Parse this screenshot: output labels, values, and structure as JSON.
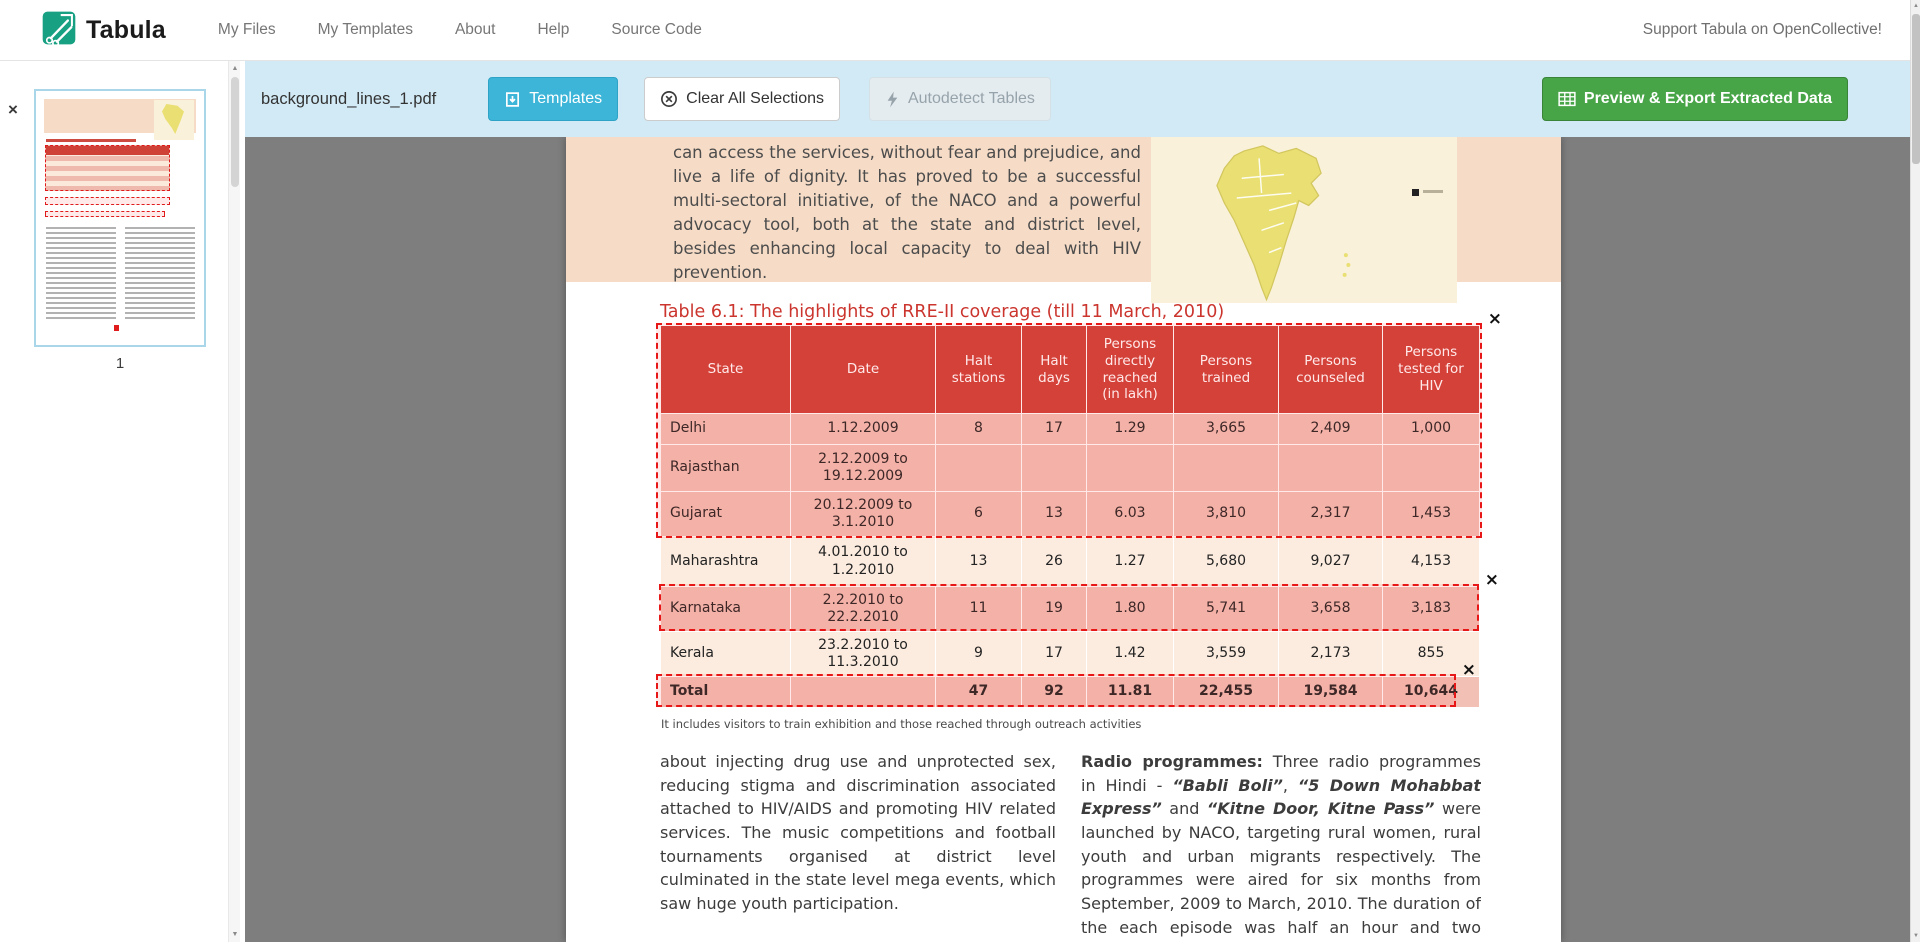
{
  "navbar": {
    "brand": "Tabula",
    "items": [
      {
        "label": "My Files"
      },
      {
        "label": "My Templates"
      },
      {
        "label": "About"
      },
      {
        "label": "Help"
      },
      {
        "label": "Source Code"
      }
    ],
    "support_link": "Support Tabula on OpenCollective!"
  },
  "toolbar": {
    "filename": "background_lines_1.pdf",
    "templates_label": "Templates",
    "clear_label": "Clear All Selections",
    "autodetect_label": "Autodetect Tables",
    "export_label": "Preview & Export Extracted Data"
  },
  "sidebar": {
    "page_number": "1"
  },
  "icons": {
    "close": "×",
    "scroll_up": "▲",
    "scroll_down": "▼"
  },
  "colors": {
    "accent_teal": "#3cb5d8",
    "accent_green": "#47a447",
    "toolbar_bg": "#d2eaf5",
    "table_header_red": "#cf4037",
    "row_pink": "#f2c0b4",
    "row_cream": "#fcecdf",
    "selection_red": "#e81717",
    "canvas_gray": "#7e7e7e"
  },
  "document": {
    "intro_paragraph": "can access the services, without fear and prejudice, and live a life of dignity. It has proved to be a successful multi-sectoral initiative, of the NACO and a powerful advocacy tool, both at the state and district level, besides enhancing local capacity to deal with HIV prevention.",
    "table_title": "Table 6.1: The highlights of RRE-II coverage (till 11 March, 2010)",
    "table": {
      "headers": [
        "State",
        "Date",
        "Halt stations",
        "Halt days",
        "Persons directly reached (in lakh)",
        "Persons trained",
        "Persons counseled",
        "Persons tested for HIV"
      ],
      "rows": [
        {
          "shade": "pink",
          "cells": [
            "Delhi",
            "1.12.2009",
            "8",
            "17",
            "1.29",
            "3,665",
            "2,409",
            "1,000"
          ]
        },
        {
          "shade": "pink",
          "cells": [
            "Rajasthan",
            "2.12.2009 to 19.12.2009",
            "",
            "",
            "",
            "",
            "",
            ""
          ]
        },
        {
          "shade": "pink",
          "cells": [
            "Gujarat",
            "20.12.2009 to 3.1.2010",
            "6",
            "13",
            "6.03",
            "3,810",
            "2,317",
            "1,453"
          ]
        },
        {
          "shade": "cream",
          "cells": [
            "Maharashtra",
            "4.01.2010 to 1.2.2010",
            "13",
            "26",
            "1.27",
            "5,680",
            "9,027",
            "4,153"
          ]
        },
        {
          "shade": "pink",
          "cells": [
            "Karnataka",
            "2.2.2010 to 22.2.2010",
            "11",
            "19",
            "1.80",
            "5,741",
            "3,658",
            "3,183"
          ]
        },
        {
          "shade": "cream",
          "cells": [
            "Kerala",
            "23.2.2010 to 11.3.2010",
            "9",
            "17",
            "1.42",
            "3,559",
            "2,173",
            "855"
          ]
        },
        {
          "shade": "pink",
          "bold": true,
          "cells": [
            "Total",
            "",
            "47",
            "92",
            "11.81",
            "22,455",
            "19,584",
            "10,644"
          ]
        }
      ]
    },
    "footnote": "It includes visitors to train exhibition and those reached through outreach activities",
    "left_column": "about injecting drug use and unprotected sex, reducing stigma and discrimination associated attached to HIV/AIDS and promoting HIV related services. The music competitions and football tournaments organised at district level culminated in the state level mega events, which saw huge youth participation.",
    "right_column_segments": [
      {
        "t": "Radio programmes:",
        "b": true
      },
      {
        "t": " Three radio programmes in Hindi - "
      },
      {
        "t": "“Babli Boli”",
        "b": true,
        "i": true
      },
      {
        "t": ", "
      },
      {
        "t": "“5 Down Mohabbat Express”",
        "b": true,
        "i": true
      },
      {
        "t": " and "
      },
      {
        "t": "“Kitne Door, Kitne Pass”",
        "b": true,
        "i": true
      },
      {
        "t": " were launched by NACO, targeting rural women, rural youth and urban migrants respectively. The programmes were aired for six months from September, 2009 to March, 2010. The duration of the each episode was half an hour and two episodes"
      }
    ]
  }
}
